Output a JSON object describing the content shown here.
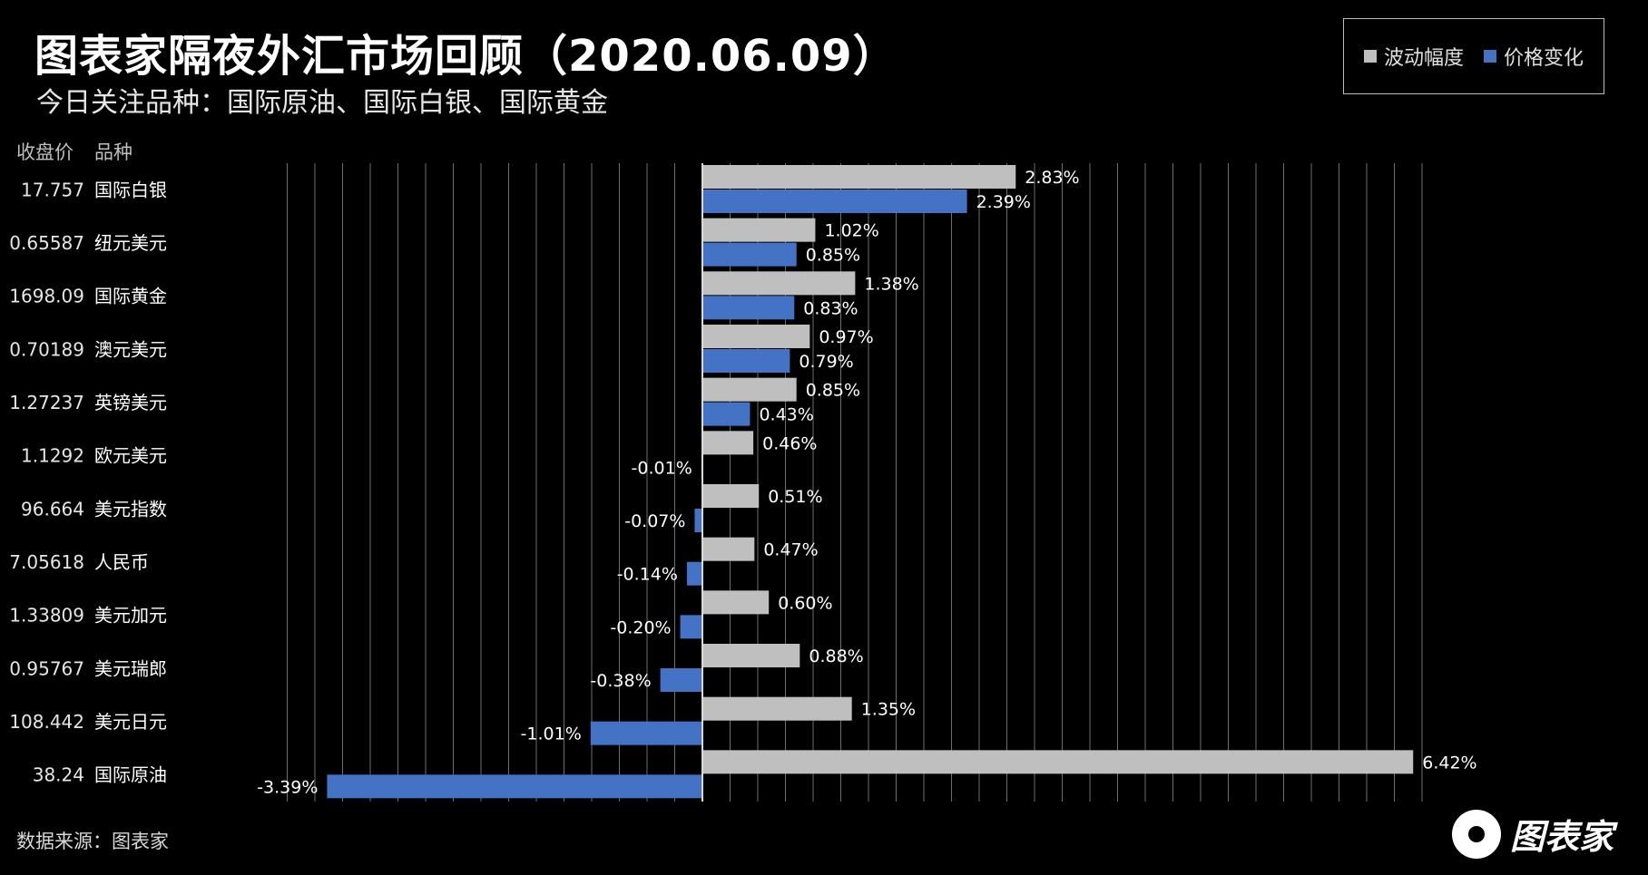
{
  "header": {
    "title": "图表家隔夜外汇市场回顾（2020.06.09）",
    "subtitle": "今日关注品种：国际原油、国际白银、国际黄金"
  },
  "legend": {
    "items": [
      {
        "label": "波动幅度",
        "color": "#bfbfbf"
      },
      {
        "label": "价格变化",
        "color": "#4472c4"
      }
    ]
  },
  "columns": {
    "close_label": "收盘价",
    "name_label": "品种"
  },
  "footer": {
    "source": "数据来源：图表家",
    "logo_text": "图表家"
  },
  "chart_data": {
    "type": "bar",
    "orientation": "horizontal",
    "categories": [
      "国际白银",
      "纽元美元",
      "国际黄金",
      "澳元美元",
      "英镑美元",
      "欧元美元",
      "美元指数",
      "人民币",
      "美元加元",
      "美元瑞郎",
      "美元日元",
      "国际原油"
    ],
    "close_prices": [
      "17.757",
      "0.65587",
      "1698.09",
      "0.70189",
      "1.27237",
      "1.1292",
      "96.664",
      "7.05618",
      "1.33809",
      "0.95767",
      "108.442",
      "38.24"
    ],
    "series": [
      {
        "name": "波动幅度",
        "color": "#bfbfbf",
        "values": [
          2.83,
          1.02,
          1.38,
          0.97,
          0.85,
          0.46,
          0.51,
          0.47,
          0.6,
          0.88,
          1.35,
          6.42
        ],
        "labels": [
          "2.83%",
          "1.02%",
          "1.38%",
          "0.97%",
          "0.85%",
          "0.46%",
          "0.51%",
          "0.47%",
          "0.60%",
          "0.88%",
          "1.35%",
          "6.42%"
        ]
      },
      {
        "name": "价格变化",
        "color": "#4472c4",
        "values": [
          2.39,
          0.85,
          0.83,
          0.79,
          0.43,
          -0.01,
          -0.07,
          -0.14,
          -0.2,
          -0.38,
          -1.01,
          -3.39
        ],
        "labels": [
          "2.39%",
          "0.85%",
          "0.83%",
          "0.79%",
          "0.43%",
          "-0.01%",
          "-0.07%",
          "-0.14%",
          "-0.20%",
          "-0.38%",
          "-1.01%",
          "-3.39%"
        ]
      }
    ],
    "xlim": [
      -4,
      7
    ],
    "grid": true,
    "legend_position": "top-right"
  }
}
